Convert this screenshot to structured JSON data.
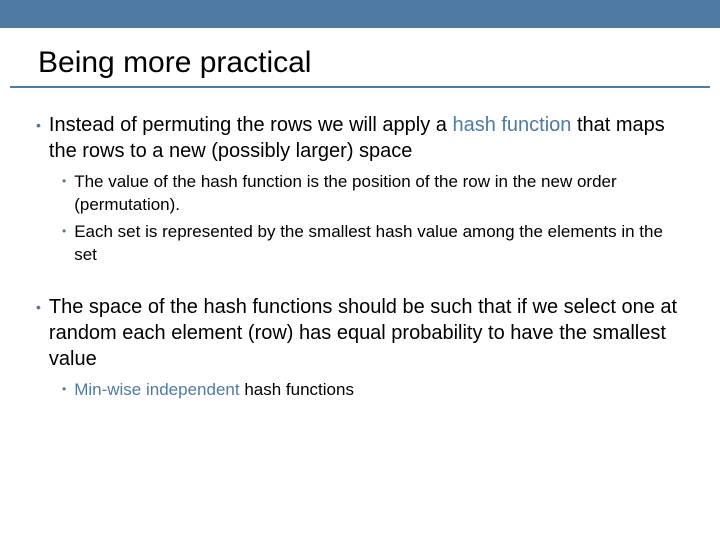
{
  "colors": {
    "topbar_bg": "#4f7aa4",
    "title_underline": "#4f7aa4",
    "bullet_dot": "#4f7aa4",
    "accent_text": "#4f7aa4",
    "body_text": "#000000",
    "background": "#ffffff"
  },
  "typography": {
    "title_fontsize": 30,
    "l1_fontsize": 20,
    "l2_fontsize": 17,
    "font_family": "Arial"
  },
  "title": "Being more practical",
  "bullets": [
    {
      "pieces": [
        {
          "t": "Instead of permuting the rows we will apply a ",
          "accent": false
        },
        {
          "t": "hash function ",
          "accent": true
        },
        {
          "t": "that maps the rows to a new (possibly larger) space",
          "accent": false
        }
      ],
      "sub": [
        {
          "pieces": [
            {
              "t": "The value of the hash function is the position of the row in the new order (permutation).",
              "accent": false
            }
          ]
        },
        {
          "pieces": [
            {
              "t": "Each set is represented by the smallest hash value among the elements in the set",
              "accent": false
            }
          ]
        }
      ]
    },
    {
      "pieces": [
        {
          "t": "The space of the hash functions should be such that if we select one at random each element (row) has equal probability to have the smallest value",
          "accent": false
        }
      ],
      "sub": [
        {
          "pieces": [
            {
              "t": "Min-wise independent ",
              "accent": true
            },
            {
              "t": "hash functions",
              "accent": false
            }
          ]
        }
      ]
    }
  ]
}
